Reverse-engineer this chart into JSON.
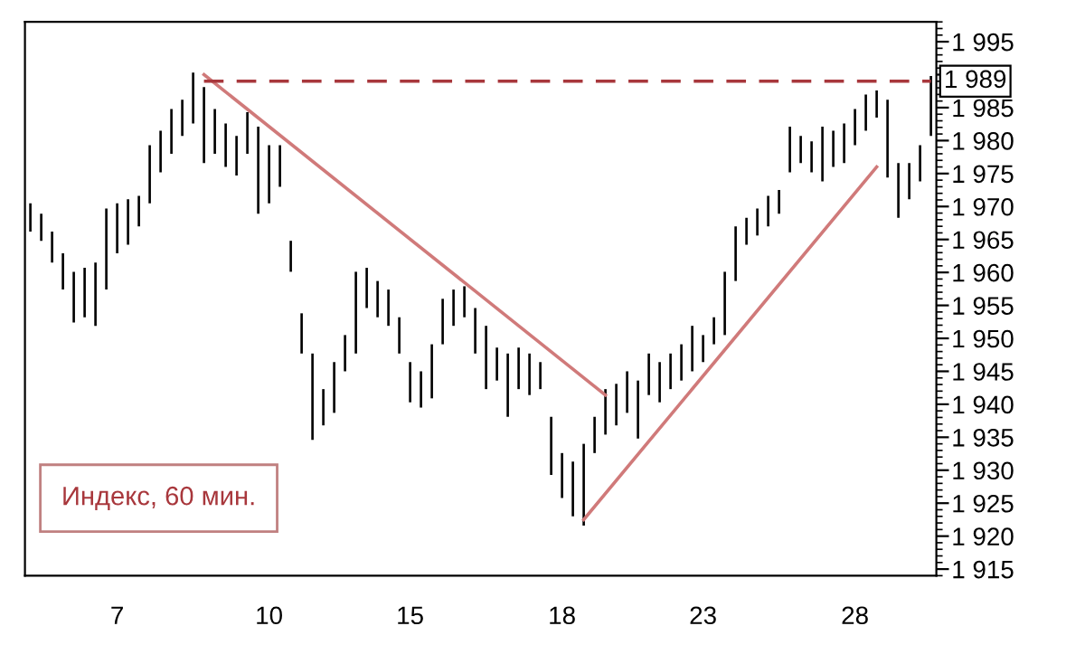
{
  "chart_data": {
    "type": "candlestick",
    "categories": [
      null,
      null,
      null,
      null,
      null,
      null,
      null,
      null,
      "7",
      null,
      null,
      null,
      null,
      null,
      null,
      null,
      null,
      null,
      null,
      null,
      null,
      null,
      "10",
      null,
      null,
      null,
      null,
      null,
      null,
      null,
      null,
      null,
      null,
      null,
      null,
      "15",
      null,
      null,
      null,
      null,
      null,
      null,
      null,
      null,
      null,
      null,
      null,
      null,
      null,
      "18",
      null,
      null,
      null,
      null,
      null,
      null,
      null,
      null,
      null,
      null,
      null,
      null,
      "23",
      null,
      null,
      null,
      null,
      null,
      null,
      null,
      null,
      null,
      null,
      null,
      null,
      null,
      "28",
      null,
      null,
      null,
      null,
      null,
      null,
      null
    ],
    "ohlc": [
      [
        1970.5,
        1970.5,
        1966.2,
        1966.2
      ],
      [
        1968.9,
        1968.9,
        1964.8,
        1964.8
      ],
      [
        1966.2,
        1966.2,
        1961.5,
        1961.5
      ],
      [
        1962.9,
        1962.9,
        1957.4,
        1957.4
      ],
      [
        1960.1,
        1960.1,
        1952.4,
        1952.4
      ],
      [
        1953.2,
        1960.7,
        1953.2,
        1960.7
      ],
      [
        1961.5,
        1961.5,
        1951.9,
        1951.9
      ],
      [
        1957.4,
        1969.7,
        1957.4,
        1969.7
      ],
      [
        1962.9,
        1970.5,
        1962.9,
        1970.5
      ],
      [
        1964.2,
        1971.1,
        1964.2,
        1971.1
      ],
      [
        1967.0,
        1971.6,
        1967.0,
        1971.6
      ],
      [
        1970.5,
        1979.3,
        1970.5,
        1979.3
      ],
      [
        1975.2,
        1981.5,
        1975.2,
        1981.5
      ],
      [
        1978.0,
        1984.8,
        1978.0,
        1984.8
      ],
      [
        1980.7,
        1986.2,
        1980.7,
        1986.2
      ],
      [
        1982.6,
        1990.3,
        1982.6,
        1990.3
      ],
      [
        1988.1,
        1988.1,
        1976.6,
        1976.6
      ],
      [
        1984.8,
        1984.8,
        1978.0,
        1978.0
      ],
      [
        1982.6,
        1982.6,
        1976.0,
        1976.0
      ],
      [
        1980.7,
        1980.7,
        1974.7,
        1974.7
      ],
      [
        1978.0,
        1984.3,
        1978.0,
        1984.3
      ],
      [
        1982.1,
        1982.1,
        1968.9,
        1968.9
      ],
      [
        1970.5,
        1979.3,
        1970.5,
        1979.3
      ],
      [
        1979.3,
        1979.3,
        1973.0,
        1973.0
      ],
      [
        1964.8,
        1964.8,
        1960.1,
        1960.1
      ],
      [
        1953.8,
        1953.8,
        1947.7,
        1947.7
      ],
      [
        1947.7,
        1947.7,
        1934.6,
        1934.6
      ],
      [
        1936.8,
        1942.3,
        1936.8,
        1942.3
      ],
      [
        1938.7,
        1946.4,
        1938.7,
        1946.4
      ],
      [
        1945.0,
        1950.5,
        1945.0,
        1950.5
      ],
      [
        1947.7,
        1960.1,
        1947.7,
        1960.1
      ],
      [
        1960.7,
        1960.7,
        1954.6,
        1954.6
      ],
      [
        1958.7,
        1958.7,
        1953.2,
        1953.2
      ],
      [
        1957.4,
        1957.4,
        1951.9,
        1951.9
      ],
      [
        1953.2,
        1953.2,
        1947.7,
        1947.7
      ],
      [
        1946.4,
        1946.4,
        1940.3,
        1940.3
      ],
      [
        1939.5,
        1945.0,
        1939.5,
        1945.0
      ],
      [
        1940.9,
        1949.1,
        1940.9,
        1949.1
      ],
      [
        1949.1,
        1956.0,
        1949.1,
        1956.0
      ],
      [
        1951.9,
        1957.4,
        1951.9,
        1957.4
      ],
      [
        1953.2,
        1957.9,
        1953.2,
        1957.9
      ],
      [
        1954.6,
        1954.6,
        1947.7,
        1947.7
      ],
      [
        1951.9,
        1951.9,
        1942.3,
        1942.3
      ],
      [
        1943.6,
        1948.6,
        1943.6,
        1948.6
      ],
      [
        1947.7,
        1947.7,
        1938.1,
        1938.1
      ],
      [
        1942.3,
        1948.6,
        1942.3,
        1948.6
      ],
      [
        1947.7,
        1947.7,
        1941.4,
        1941.4
      ],
      [
        1946.4,
        1946.4,
        1942.3,
        1942.3
      ],
      [
        1938.1,
        1938.1,
        1929.3,
        1929.3
      ],
      [
        1932.6,
        1932.6,
        1925.8,
        1925.8
      ],
      [
        1931.3,
        1931.3,
        1923.0,
        1923.0
      ],
      [
        1921.6,
        1934.0,
        1921.6,
        1934.0
      ],
      [
        1932.6,
        1938.1,
        1932.6,
        1938.1
      ],
      [
        1935.4,
        1942.3,
        1935.4,
        1942.3
      ],
      [
        1936.8,
        1943.1,
        1936.8,
        1943.1
      ],
      [
        1938.7,
        1945.0,
        1938.7,
        1945.0
      ],
      [
        1943.6,
        1943.6,
        1934.8,
        1934.8
      ],
      [
        1941.4,
        1947.7,
        1941.4,
        1947.7
      ],
      [
        1946.4,
        1946.4,
        1940.3,
        1940.3
      ],
      [
        1942.3,
        1947.7,
        1942.3,
        1947.7
      ],
      [
        1943.6,
        1949.1,
        1943.6,
        1949.1
      ],
      [
        1945.0,
        1951.9,
        1945.0,
        1951.9
      ],
      [
        1950.5,
        1950.5,
        1946.4,
        1946.4
      ],
      [
        1949.1,
        1953.2,
        1949.1,
        1953.2
      ],
      [
        1950.5,
        1960.1,
        1950.5,
        1960.1
      ],
      [
        1958.7,
        1967.0,
        1958.7,
        1967.0
      ],
      [
        1964.2,
        1968.3,
        1964.2,
        1968.3
      ],
      [
        1965.6,
        1969.7,
        1965.6,
        1969.7
      ],
      [
        1967.0,
        1971.6,
        1967.0,
        1971.6
      ],
      [
        1968.9,
        1972.5,
        1968.9,
        1972.5
      ],
      [
        1975.2,
        1982.1,
        1975.2,
        1982.1
      ],
      [
        1980.7,
        1980.7,
        1976.6,
        1976.6
      ],
      [
        1979.9,
        1979.9,
        1975.2,
        1975.2
      ],
      [
        1973.8,
        1982.1,
        1973.8,
        1982.1
      ],
      [
        1981.5,
        1981.5,
        1976.0,
        1976.0
      ],
      [
        1976.6,
        1982.6,
        1976.6,
        1982.6
      ],
      [
        1979.3,
        1984.8,
        1979.3,
        1984.8
      ],
      [
        1981.5,
        1987.0,
        1981.5,
        1987.0
      ],
      [
        1983.5,
        1987.6,
        1983.5,
        1987.6
      ],
      [
        1986.2,
        1986.2,
        1974.4,
        1974.4
      ],
      [
        1976.6,
        1976.6,
        1968.3,
        1968.3
      ],
      [
        1971.1,
        1976.6,
        1971.1,
        1976.6
      ],
      [
        1973.8,
        1979.3,
        1973.8,
        1979.3
      ],
      [
        1980.7,
        1989.8,
        1980.7,
        1989.8
      ]
    ],
    "color": "#000000",
    "series": [
      {
        "type": "line",
        "values": [
          null,
          null,
          null,
          null,
          null,
          null,
          null,
          null,
          null,
          null,
          null,
          null,
          null,
          null,
          null,
          null,
          1990,
          null,
          null,
          null,
          null,
          null,
          null,
          null,
          null,
          null,
          null,
          null,
          null,
          null,
          null,
          null,
          null,
          null,
          null,
          null,
          null,
          null,
          null,
          null,
          null,
          null,
          null,
          null,
          null,
          null,
          null,
          null,
          null,
          null,
          null,
          null,
          null,
          1941.4,
          null,
          null,
          null,
          null,
          null,
          null,
          null,
          null,
          null,
          null,
          null,
          null,
          null,
          null,
          null,
          null,
          null,
          null,
          null,
          null,
          null,
          null,
          null,
          null,
          null,
          null,
          null,
          null,
          null,
          null
        ],
        "color": "#d07a7a",
        "line_style": "solid"
      },
      {
        "type": "line",
        "values": [
          null,
          null,
          null,
          null,
          null,
          null,
          null,
          null,
          null,
          null,
          null,
          null,
          null,
          null,
          null,
          null,
          null,
          null,
          null,
          null,
          null,
          null,
          null,
          null,
          null,
          null,
          null,
          null,
          null,
          null,
          null,
          null,
          null,
          null,
          null,
          null,
          null,
          null,
          null,
          null,
          null,
          null,
          null,
          null,
          null,
          null,
          null,
          null,
          null,
          null,
          null,
          1922.5,
          null,
          null,
          null,
          null,
          null,
          null,
          null,
          null,
          null,
          null,
          null,
          null,
          null,
          null,
          null,
          null,
          null,
          null,
          null,
          null,
          null,
          null,
          null,
          null,
          null,
          null,
          1976.0,
          null,
          null,
          null,
          null,
          null
        ],
        "color": "#d07a7a",
        "line_style": "solid"
      },
      {
        "type": "line",
        "values": [
          null,
          null,
          null,
          null,
          null,
          null,
          null,
          null,
          null,
          null,
          null,
          null,
          null,
          null,
          null,
          null,
          1989,
          null,
          null,
          null,
          null,
          null,
          null,
          null,
          null,
          null,
          null,
          null,
          null,
          null,
          null,
          null,
          null,
          null,
          null,
          null,
          null,
          null,
          null,
          null,
          null,
          null,
          null,
          null,
          null,
          null,
          null,
          null,
          null,
          null,
          null,
          null,
          null,
          null,
          null,
          null,
          null,
          null,
          null,
          null,
          null,
          null,
          null,
          null,
          null,
          null,
          null,
          null,
          null,
          null,
          null,
          null,
          null,
          null,
          null,
          null,
          null,
          null,
          null,
          null,
          null,
          null,
          null,
          1989
        ],
        "color": "#a8373c",
        "line_style": "dashed"
      }
    ],
    "annotations": [
      "Индекс, 60 мин.",
      {
        "text": "1 989",
        "y": 1989
      }
    ],
    "ylim": [
      1914,
      1998
    ],
    "yticks": [
      {
        "value": 1915,
        "label": "1 915"
      },
      {
        "value": 1920,
        "label": "1 920"
      },
      {
        "value": 1925,
        "label": "1 925"
      },
      {
        "value": 1930,
        "label": "1 930"
      },
      {
        "value": 1935,
        "label": "1 935"
      },
      {
        "value": 1940,
        "label": "1 940"
      },
      {
        "value": 1945,
        "label": "1 945"
      },
      {
        "value": 1950,
        "label": "1 950"
      },
      {
        "value": 1955,
        "label": "1 955"
      },
      {
        "value": 1960,
        "label": "1 960"
      },
      {
        "value": 1965,
        "label": "1 965"
      },
      {
        "value": 1970,
        "label": "1 970"
      },
      {
        "value": 1975,
        "label": "1 975"
      },
      {
        "value": 1980,
        "label": "1 980"
      },
      {
        "value": 1985,
        "label": "1 985"
      },
      {
        "value": 1990,
        "label": null
      },
      {
        "value": 1995,
        "label": "1 995"
      }
    ],
    "grid": false,
    "legend": false
  }
}
